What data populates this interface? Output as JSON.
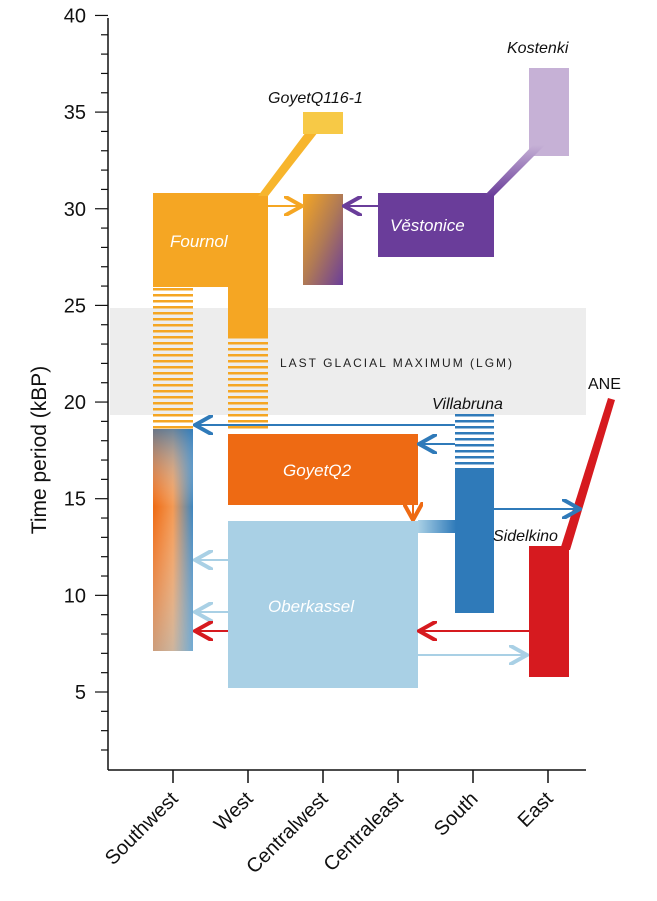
{
  "axis": {
    "ylabel": "Time period (kBP)",
    "ticks": [
      "5",
      "10",
      "15",
      "20",
      "25",
      "30",
      "35",
      "40"
    ]
  },
  "regions": [
    "Southwest",
    "West",
    "Centralwest",
    "Centraleast",
    "South",
    "East"
  ],
  "lgm": {
    "label": "LAST GLACIAL MAXIMUM (LGM)",
    "start_kbp": 19.5,
    "end_kbp": 25
  },
  "clusters": {
    "fournol": "Fournol",
    "goyetq116": "GoyetQ116-1",
    "vestonice": "Věstonice",
    "kostenki": "Kostenki",
    "villabruna": "Villabruna",
    "goyetq2": "GoyetQ2",
    "sidelkino": "Sidelkino",
    "oberkassel": "Oberkassel",
    "ane": "ANE"
  },
  "colors": {
    "fournol": "#f5a623",
    "goyetq116": "#f7b52c",
    "vestonice": "#6a3d9a",
    "kostenki": "#c6b1d6",
    "villabruna": "#2f7ab9",
    "goyetq2": "#ee6a13",
    "oberkassel": "#a9d0e5",
    "ane": "#d61a1f",
    "lgm": "#ededed"
  }
}
